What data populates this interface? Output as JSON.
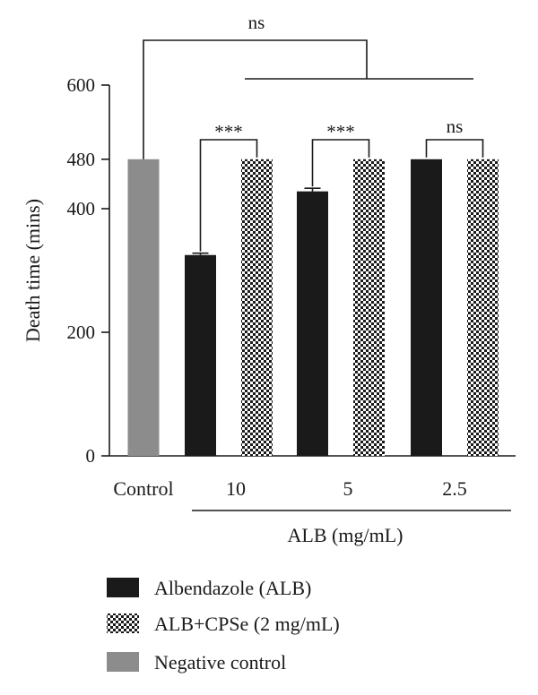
{
  "chart_data": {
    "type": "bar",
    "ylabel": "Death time (mins)",
    "xlabel": "ALB (mg/mL)",
    "ylim": [
      0,
      600
    ],
    "yticks": [
      0,
      200,
      400,
      480,
      600
    ],
    "categories": [
      "Control",
      "10",
      "5",
      "2.5"
    ],
    "series": [
      {
        "name": "Albendazole (ALB)",
        "color": "#1a1a1a",
        "pattern": "solid",
        "values": [
          null,
          325,
          428,
          480
        ],
        "errors": [
          null,
          3,
          5,
          0
        ]
      },
      {
        "name": "ALB+CPSe (2 mg/mL)",
        "color": "#1a1a1a",
        "pattern": "checker",
        "values": [
          null,
          480,
          480,
          480
        ],
        "errors": [
          null,
          0,
          0,
          0
        ]
      },
      {
        "name": "Negative control",
        "color": "#8c8c8c",
        "pattern": "solid",
        "values": [
          480,
          null,
          null,
          null
        ],
        "errors": [
          0,
          null,
          null,
          null
        ]
      }
    ],
    "significance": [
      {
        "label": "ns",
        "between": "Control vs ALB treatments"
      },
      {
        "label": "***",
        "category": "10"
      },
      {
        "label": "***",
        "category": "5"
      },
      {
        "label": "ns",
        "category": "2.5"
      }
    ]
  }
}
